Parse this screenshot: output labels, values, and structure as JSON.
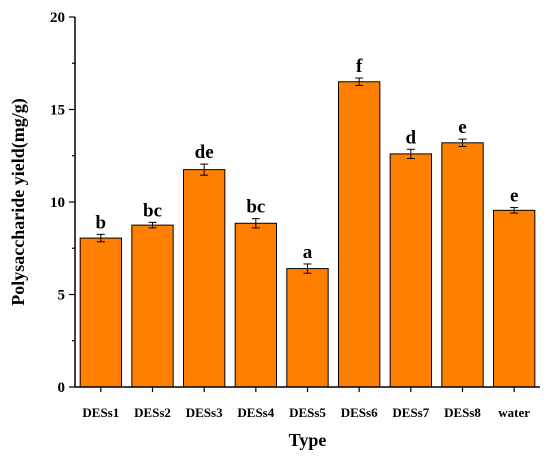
{
  "chart_data": {
    "type": "bar",
    "title": "",
    "xlabel": "Type",
    "ylabel": "Polysaccharide yield(mg/g)",
    "ylim": [
      0,
      20
    ],
    "yticks": [
      "0",
      "5",
      "10",
      "15",
      "20"
    ],
    "categories": [
      "DESs1",
      "DESs2",
      "DESs3",
      "DESs4",
      "DESs5",
      "DESs6",
      "DESs7",
      "DESs8",
      "water"
    ],
    "values": [
      8.05,
      8.75,
      11.75,
      8.85,
      6.4,
      16.5,
      12.6,
      13.2,
      9.55
    ],
    "errors": [
      0.2,
      0.15,
      0.3,
      0.25,
      0.25,
      0.2,
      0.25,
      0.2,
      0.15
    ],
    "significance": [
      "b",
      "bc",
      "de",
      "bc",
      "a",
      "f",
      "d",
      "e",
      "e"
    ],
    "bar_color": "#FF8000",
    "grid": false
  }
}
